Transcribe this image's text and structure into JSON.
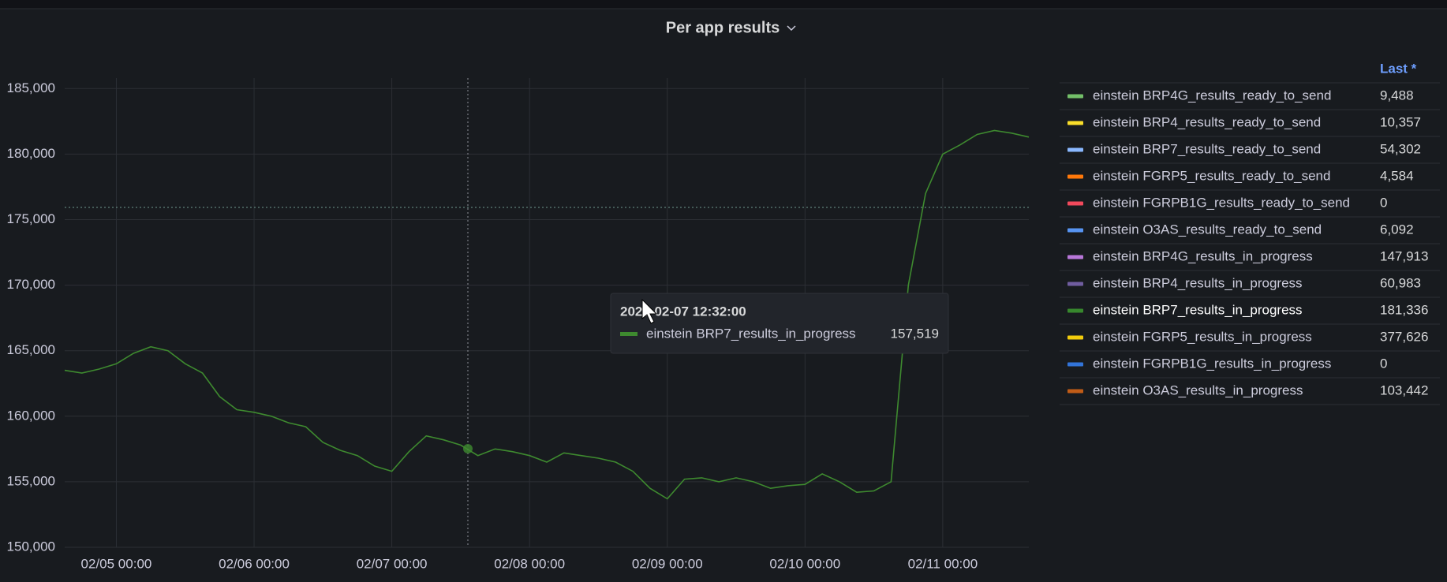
{
  "chart_data": {
    "type": "line",
    "title": "Per app results",
    "categories": [
      null,
      null,
      null,
      "02/05 00:00",
      null,
      null,
      null,
      null,
      null,
      null,
      null,
      "02/06 00:00",
      null,
      null,
      null,
      null,
      null,
      null,
      null,
      "02/07 00:00",
      null,
      null,
      null,
      null,
      null,
      null,
      null,
      "02/08 00:00",
      null,
      null,
      null,
      null,
      null,
      null,
      null,
      "02/09 00:00",
      null,
      null,
      null,
      null,
      null,
      null,
      null,
      "02/10 00:00",
      null,
      null,
      null,
      null,
      null,
      null,
      null,
      "02/11 00:00",
      null,
      null,
      null,
      null,
      null
    ],
    "series": [
      {
        "name": "einstein BRP7_results_in_progress",
        "color": "#3e8a2f",
        "values": [
          163500,
          163300,
          163600,
          164000,
          164800,
          165300,
          165000,
          164000,
          163300,
          161500,
          160500,
          160300,
          160000,
          159500,
          159200,
          158000,
          157400,
          157000,
          156200,
          155800,
          157300,
          158500,
          158200,
          157800,
          157000,
          157500,
          157300,
          157000,
          156500,
          157200,
          157000,
          156800,
          156500,
          155800,
          154500,
          153700,
          155200,
          155300,
          155000,
          155300,
          155000,
          154500,
          154700,
          154800,
          155600,
          155000,
          154200,
          154300,
          155000,
          170000,
          177000,
          180000,
          180700,
          181500,
          181800,
          181600,
          181300
        ]
      }
    ],
    "ylim": [
      150000,
      185800
    ],
    "yticks": [
      {
        "value": 150000,
        "label": "150,000"
      },
      {
        "value": 155000,
        "label": "155,000"
      },
      {
        "value": 160000,
        "label": "160,000"
      },
      {
        "value": 165000,
        "label": "165,000"
      },
      {
        "value": 170000,
        "label": "170,000"
      },
      {
        "value": 175000,
        "label": "175,000"
      },
      {
        "value": 180000,
        "label": "180,000"
      },
      {
        "value": 185000,
        "label": "185,000"
      }
    ],
    "grid": true,
    "tooltip": {
      "time": "2023-02-07 12:32:00",
      "value": 157519,
      "value_label": "157,519"
    },
    "legend": {
      "header": "Last *",
      "rows": [
        {
          "name": "einstein BRP4G_results_ready_to_send",
          "color": "#73bf69",
          "last": 9488,
          "last_label": "9,488"
        },
        {
          "name": "einstein BRP4_results_ready_to_send",
          "color": "#fade2a",
          "last": 10357,
          "last_label": "10,357"
        },
        {
          "name": "einstein BRP7_results_ready_to_send",
          "color": "#8ab8ff",
          "last": 54302,
          "last_label": "54,302"
        },
        {
          "name": "einstein FGRP5_results_ready_to_send",
          "color": "#ff780a",
          "last": 4584,
          "last_label": "4,584"
        },
        {
          "name": "einstein FGRPB1G_results_ready_to_send",
          "color": "#f2495c",
          "last": 0,
          "last_label": "0"
        },
        {
          "name": "einstein O3AS_results_ready_to_send",
          "color": "#5794f2",
          "last": 6092,
          "last_label": "6,092"
        },
        {
          "name": "einstein BRP4G_results_in_progress",
          "color": "#b877d9",
          "last": 147913,
          "last_label": "147,913"
        },
        {
          "name": "einstein BRP4_results_in_progress",
          "color": "#705da0",
          "last": 60983,
          "last_label": "60,983"
        },
        {
          "name": "einstein BRP7_results_in_progress",
          "color": "#37872d",
          "last": 181336,
          "last_label": "181,336"
        },
        {
          "name": "einstein FGRP5_results_in_progress",
          "color": "#f2cc0c",
          "last": 377626,
          "last_label": "377,626"
        },
        {
          "name": "einstein FGRPB1G_results_in_progress",
          "color": "#3274d9",
          "last": 0,
          "last_label": "0"
        },
        {
          "name": "einstein O3AS_results_in_progress",
          "color": "#c15c17",
          "last": 103442,
          "last_label": "103,442"
        }
      ]
    }
  }
}
